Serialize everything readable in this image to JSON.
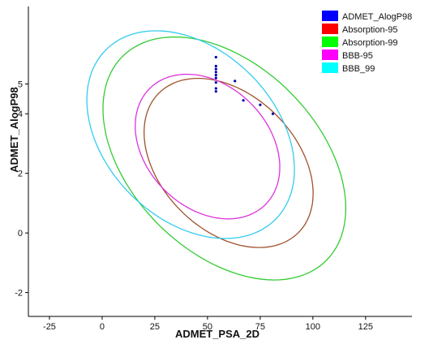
{
  "chart_data": {
    "type": "scatter",
    "title": "",
    "xlabel": "ADMET_PSA_2D",
    "ylabel": "ADMET_AlogP98",
    "xlim": [
      -35,
      147
    ],
    "ylim": [
      -2.8,
      7.6
    ],
    "xticks": [
      "-25",
      "0",
      "25",
      "50",
      "75",
      "100",
      "125"
    ],
    "xtick_values": [
      -25,
      0,
      25,
      50,
      75,
      100,
      125
    ],
    "yticks": [
      "-2",
      "0",
      "2",
      "4",
      "5"
    ],
    "ytick_values": [
      -2,
      0,
      2,
      4,
      5
    ],
    "grid": false,
    "legend_position": "top-right",
    "legend": [
      {
        "label": "ADMET_AlogP98",
        "color": "#0000ff"
      },
      {
        "label": "Absorption-95",
        "color": "#ff0000"
      },
      {
        "label": "Absorption-99",
        "color": "#00ff00"
      },
      {
        "label": "BBB-95",
        "color": "#ff00ff"
      },
      {
        "label": "BBB_99",
        "color": "#00ffff"
      }
    ],
    "points": {
      "name": "ADMET_AlogP98",
      "color": "#0000aa",
      "x": [
        54,
        54,
        54,
        54,
        54,
        54,
        54,
        54,
        54,
        63,
        67,
        75,
        81
      ],
      "y": [
        5.9,
        5.6,
        5.5,
        5.4,
        5.3,
        5.2,
        5.05,
        4.85,
        4.75,
        5.1,
        4.45,
        4.3,
        4.0
      ]
    },
    "ellipses": [
      {
        "name": "Absorption-95",
        "color": "#a0522d",
        "cx": 60,
        "cy": 2.35,
        "rx": 65,
        "ry": 3.15,
        "angle": -45
      },
      {
        "name": "Absorption-99",
        "color": "#33cc33",
        "cx": 58,
        "cy": 2.5,
        "rx": 95,
        "ry": 4.35,
        "angle": -45
      },
      {
        "name": "BBB-95",
        "color": "#dd33dd",
        "cx": 50,
        "cy": 2.9,
        "rx": 54,
        "ry": 2.85,
        "angle": -45
      },
      {
        "name": "BBB_99",
        "color": "#33ccee",
        "cx": 42,
        "cy": 3.3,
        "rx": 79,
        "ry": 3.95,
        "angle": -45
      }
    ]
  }
}
